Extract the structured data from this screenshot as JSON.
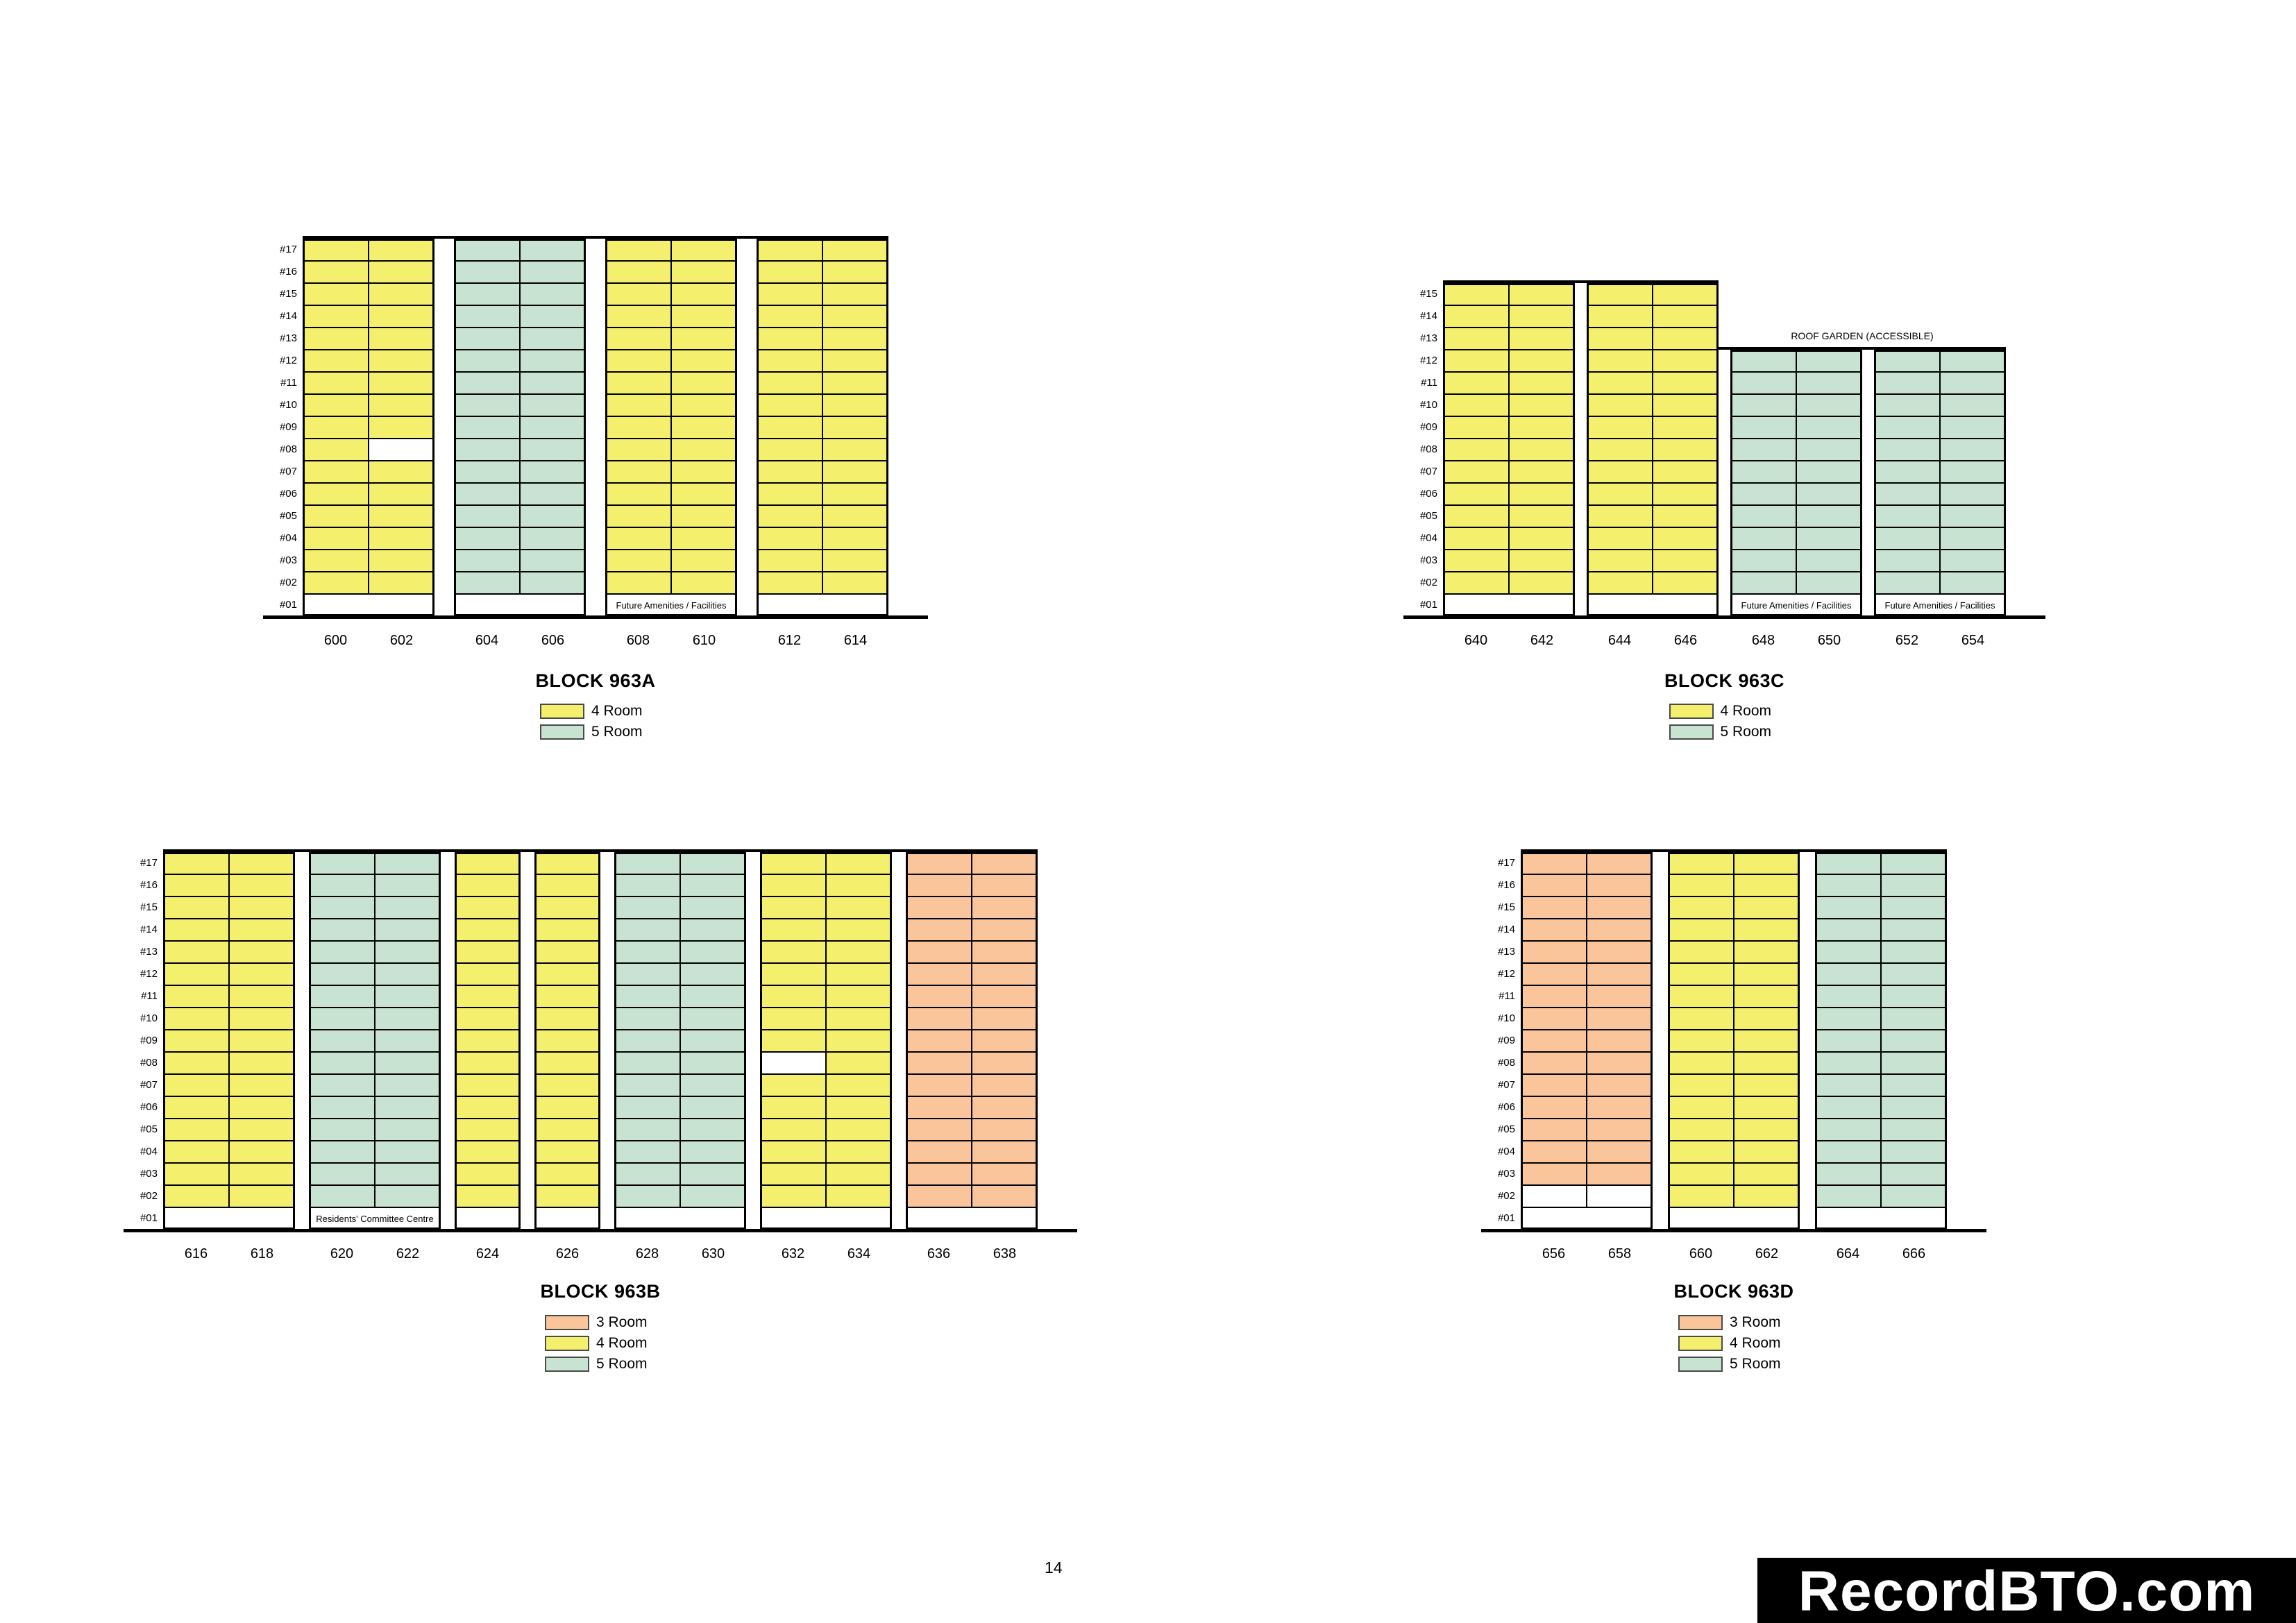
{
  "page": {
    "number": "14",
    "watermark": "RecordBTO.com"
  },
  "room_labels": {
    "room3": "3 Room",
    "room4": "4 Room",
    "room5": "5 Room"
  },
  "colors": {
    "room3": "#FBC59B",
    "room4": "#F4F06E",
    "room5": "#C8E3D1",
    "outline": "#000000",
    "unavailable": "#FFFFFF",
    "watermark_bg": "#000000",
    "watermark_text": "#FFFFFF"
  },
  "texts": {
    "future_amenities": "Future Amenities / Facilities",
    "residents_committee": "Residents' Committee Centre",
    "roof_garden": "ROOF GARDEN (ACCESSIBLE)"
  },
  "blocks": [
    {
      "id": "A",
      "title": "BLOCK 963A",
      "legend": [
        "room4",
        "room5"
      ],
      "floor_labels": [
        "#17",
        "#16",
        "#15",
        "#14",
        "#13",
        "#12",
        "#11",
        "#10",
        "#09",
        "#08",
        "#07",
        "#06",
        "#05",
        "#04",
        "#03",
        "#02",
        "#01"
      ],
      "groups": [
        {
          "units": [
            "600",
            "602"
          ],
          "room": "room4",
          "top_floor": 17,
          "white_units": {
            "602": [
              8
            ]
          },
          "ground_label": ""
        },
        {
          "units": [
            "604",
            "606"
          ],
          "room": "room5",
          "top_floor": 17,
          "white_units": {},
          "ground_label": ""
        },
        {
          "units": [
            "608",
            "610"
          ],
          "room": "room4",
          "top_floor": 17,
          "white_units": {},
          "ground_label": "Future Amenities / Facilities"
        },
        {
          "units": [
            "612",
            "614"
          ],
          "room": "room4",
          "top_floor": 17,
          "white_units": {},
          "ground_label": ""
        }
      ]
    },
    {
      "id": "C",
      "title": "BLOCK 963C",
      "legend": [
        "room4",
        "room5"
      ],
      "roof_label": "ROOF GARDEN (ACCESSIBLE)",
      "floor_labels": [
        "#15",
        "#14",
        "#13",
        "#12",
        "#11",
        "#10",
        "#09",
        "#08",
        "#07",
        "#06",
        "#05",
        "#04",
        "#03",
        "#02",
        "#01"
      ],
      "groups": [
        {
          "units": [
            "640",
            "642"
          ],
          "room": "room4",
          "top_floor": 15,
          "white_units": {},
          "ground_label": ""
        },
        {
          "units": [
            "644",
            "646"
          ],
          "room": "room4",
          "top_floor": 15,
          "white_units": {},
          "ground_label": ""
        },
        {
          "units": [
            "648",
            "650"
          ],
          "room": "room5",
          "top_floor": 12,
          "white_units": {},
          "ground_label": "Future Amenities / Facilities"
        },
        {
          "units": [
            "652",
            "654"
          ],
          "room": "room5",
          "top_floor": 12,
          "white_units": {},
          "ground_label": "Future Amenities / Facilities"
        }
      ]
    },
    {
      "id": "B",
      "title": "BLOCK 963B",
      "legend": [
        "room3",
        "room4",
        "room5"
      ],
      "floor_labels": [
        "#17",
        "#16",
        "#15",
        "#14",
        "#13",
        "#12",
        "#11",
        "#10",
        "#09",
        "#08",
        "#07",
        "#06",
        "#05",
        "#04",
        "#03",
        "#02",
        "#01"
      ],
      "groups": [
        {
          "units": [
            "616",
            "618"
          ],
          "room": "room4",
          "top_floor": 17,
          "white_units": {},
          "ground_label": ""
        },
        {
          "units": [
            "620",
            "622"
          ],
          "room": "room5",
          "top_floor": 17,
          "white_units": {},
          "ground_label": "Residents' Committee Centre"
        },
        {
          "units": [
            "624"
          ],
          "room": "room4",
          "top_floor": 17,
          "white_units": {},
          "ground_label": ""
        },
        {
          "units": [
            "626"
          ],
          "room": "room4",
          "top_floor": 17,
          "white_units": {},
          "ground_label": ""
        },
        {
          "units": [
            "628",
            "630"
          ],
          "room": "room5",
          "top_floor": 17,
          "white_units": {},
          "ground_label": ""
        },
        {
          "units": [
            "632",
            "634"
          ],
          "room": "room4",
          "top_floor": 17,
          "white_units": {
            "632": [
              8
            ]
          },
          "ground_label": ""
        },
        {
          "units": [
            "636",
            "638"
          ],
          "room": "room3",
          "top_floor": 17,
          "white_units": {},
          "ground_label": ""
        }
      ]
    },
    {
      "id": "D",
      "title": "BLOCK 963D",
      "legend": [
        "room3",
        "room4",
        "room5"
      ],
      "floor_labels": [
        "#17",
        "#16",
        "#15",
        "#14",
        "#13",
        "#12",
        "#11",
        "#10",
        "#09",
        "#08",
        "#07",
        "#06",
        "#05",
        "#04",
        "#03",
        "#02",
        "#01"
      ],
      "groups": [
        {
          "units": [
            "656",
            "658"
          ],
          "room": "room3",
          "top_floor": 17,
          "white_units": {
            "656": [
              2
            ],
            "658": [
              2
            ]
          },
          "ground_label": ""
        },
        {
          "units": [
            "660",
            "662"
          ],
          "room": "room4",
          "top_floor": 17,
          "white_units": {},
          "ground_label": ""
        },
        {
          "units": [
            "664",
            "666"
          ],
          "room": "room5",
          "top_floor": 17,
          "white_units": {},
          "ground_label": ""
        }
      ]
    }
  ]
}
